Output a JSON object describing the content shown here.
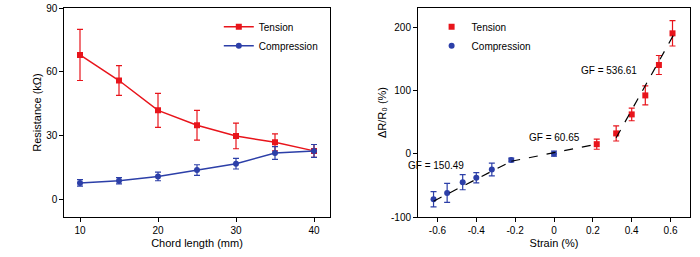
{
  "chart_data": [
    {
      "type": "line",
      "x_label": "Chord length (mm)",
      "y_label": "Resistance (kΩ)",
      "xlim": [
        8,
        42
      ],
      "xticks": [
        10,
        20,
        30,
        40
      ],
      "ylim": [
        -8,
        90
      ],
      "yticks": [
        0,
        30,
        60,
        90
      ],
      "legend": "top right",
      "series": [
        {
          "name": "Tension",
          "color": "#e8141b",
          "marker": "square",
          "x": [
            10,
            15,
            20,
            25,
            30,
            35,
            40
          ],
          "values": [
            68,
            56,
            42,
            35,
            30,
            27,
            23
          ],
          "errors": [
            12,
            7,
            8,
            7,
            6,
            4,
            3
          ]
        },
        {
          "name": "Compression",
          "color": "#2c3fa8",
          "marker": "circle",
          "x": [
            10,
            15,
            20,
            25,
            30,
            35,
            40
          ],
          "values": [
            8,
            9,
            11,
            14,
            17,
            22,
            23
          ],
          "errors": [
            1.5,
            1.5,
            2,
            2.5,
            2.5,
            3,
            3
          ]
        }
      ]
    },
    {
      "type": "scatter",
      "x_label": "Strain (%)",
      "y_label": "ΔR/R₀ (%)",
      "xlim": [
        -0.7,
        0.7
      ],
      "xticks": [
        -0.6,
        -0.4,
        -0.2,
        0,
        0.2,
        0.4,
        0.6
      ],
      "ylim": [
        -100,
        230
      ],
      "yticks": [
        -100,
        0,
        100,
        200
      ],
      "legend": "top left",
      "series": [
        {
          "name": "Tension",
          "color": "#e8141b",
          "marker": "square",
          "x": [
            0.22,
            0.32,
            0.4,
            0.47,
            0.54,
            0.61
          ],
          "values": [
            15,
            32,
            62,
            92,
            140,
            190
          ],
          "errors": [
            8,
            12,
            10,
            15,
            15,
            20
          ]
        },
        {
          "name": "Compression",
          "color": "#2c3fa8",
          "marker": "circle",
          "x": [
            -0.62,
            -0.55,
            -0.47,
            -0.4,
            -0.32,
            -0.22,
            0
          ],
          "values": [
            -72,
            -62,
            -45,
            -38,
            -25,
            -10,
            0
          ],
          "errors": [
            12,
            15,
            12,
            8,
            10,
            3,
            4
          ]
        }
      ],
      "fits": [
        {
          "label": "GF = 150.49",
          "line_style": "dash",
          "x": [
            -0.62,
            -0.22
          ],
          "values": [
            -75,
            -12
          ]
        },
        {
          "label": "GF = 60.65",
          "line_style": "dash",
          "x": [
            -0.22,
            0.22
          ],
          "values": [
            -12,
            15
          ]
        },
        {
          "label": "GF = 536.61",
          "line_style": "dash",
          "x": [
            0.32,
            0.62
          ],
          "values": [
            25,
            190
          ]
        }
      ]
    }
  ]
}
